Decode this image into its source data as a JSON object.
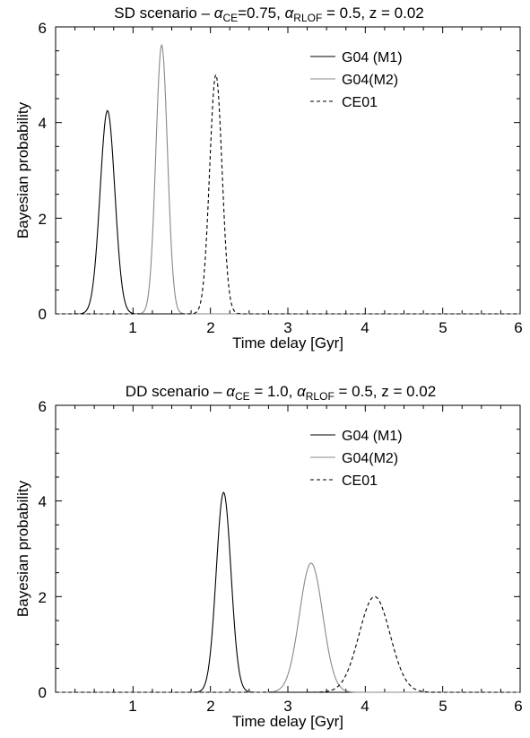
{
  "chart_data": [
    {
      "type": "line",
      "title": {
        "prefix": "SD scenario – ",
        "a1_sym": "α",
        "a1_sub": "CE",
        "a1_val": "=0.75, ",
        "a2_sym": "α",
        "a2_sub": "RLOF",
        "a2_val": " = 0.5, z = 0.02"
      },
      "xlabel": "Time delay [Gyr]",
      "ylabel": "Bayesian probability",
      "xlim": [
        0,
        6
      ],
      "ylim": [
        0,
        6
      ],
      "xticks": [
        "1",
        "2",
        "3",
        "4",
        "5",
        "6"
      ],
      "yticks": [
        "0",
        "2",
        "4",
        "6"
      ],
      "legend_position": "top-right",
      "series": [
        {
          "name": "G04 (M1)",
          "style": "solid",
          "color": "#000000",
          "peak_x": 0.67,
          "peak_y": 4.25,
          "sigma": 0.095
        },
        {
          "name": "G04(M2)",
          "style": "solid",
          "color": "#888888",
          "peak_x": 1.37,
          "peak_y": 5.62,
          "sigma": 0.075
        },
        {
          "name": "CE01",
          "style": "dashed",
          "color": "#000000",
          "peak_x": 2.07,
          "peak_y": 5.0,
          "sigma": 0.08
        }
      ]
    },
    {
      "type": "line",
      "title": {
        "prefix": "DD scenario – ",
        "a1_sym": "α",
        "a1_sub": "CE",
        "a1_val": " = 1.0, ",
        "a2_sym": "α",
        "a2_sub": "RLOF",
        "a2_val": " = 0.5, z = 0.02"
      },
      "xlabel": "Time delay [Gyr]",
      "ylabel": "Bayesian probability",
      "xlim": [
        0,
        6
      ],
      "ylim": [
        0,
        6
      ],
      "xticks": [
        "1",
        "2",
        "3",
        "4",
        "5",
        "6"
      ],
      "yticks": [
        "0",
        "2",
        "4",
        "6"
      ],
      "legend_position": "top-right",
      "series": [
        {
          "name": "G04 (M1)",
          "style": "solid",
          "color": "#000000",
          "peak_x": 2.17,
          "peak_y": 4.18,
          "sigma": 0.095
        },
        {
          "name": "G04(M2)",
          "style": "solid",
          "color": "#888888",
          "peak_x": 3.3,
          "peak_y": 2.7,
          "sigma": 0.15
        },
        {
          "name": "CE01",
          "style": "dashed",
          "color": "#000000",
          "peak_x": 4.12,
          "peak_y": 2.0,
          "sigma": 0.2
        }
      ]
    }
  ]
}
